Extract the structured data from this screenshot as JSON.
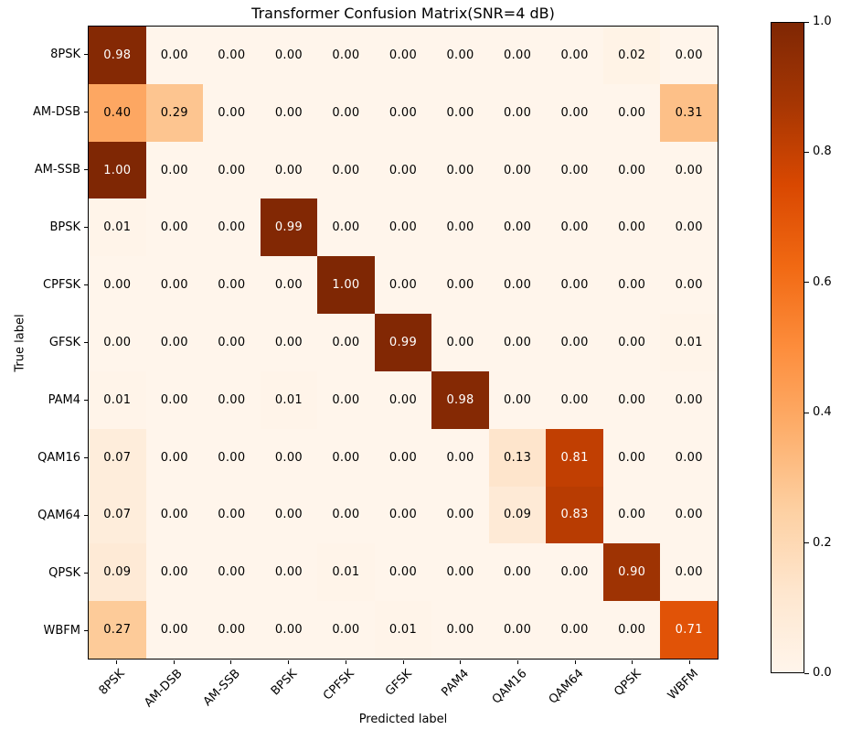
{
  "chart_data": {
    "type": "heatmap",
    "title": "Transformer Confusion Matrix(SNR=4 dB)",
    "xlabel": "Predicted label",
    "ylabel": "True label",
    "x_categories": [
      "8PSK",
      "AM-DSB",
      "AM-SSB",
      "BPSK",
      "CPFSK",
      "GFSK",
      "PAM4",
      "QAM16",
      "QAM64",
      "QPSK",
      "WBFM"
    ],
    "y_categories": [
      "8PSK",
      "AM-DSB",
      "AM-SSB",
      "BPSK",
      "CPFSK",
      "GFSK",
      "PAM4",
      "QAM16",
      "QAM64",
      "QPSK",
      "WBFM"
    ],
    "matrix": [
      [
        0.98,
        0.0,
        0.0,
        0.0,
        0.0,
        0.0,
        0.0,
        0.0,
        0.0,
        0.02,
        0.0
      ],
      [
        0.4,
        0.29,
        0.0,
        0.0,
        0.0,
        0.0,
        0.0,
        0.0,
        0.0,
        0.0,
        0.31
      ],
      [
        1.0,
        0.0,
        0.0,
        0.0,
        0.0,
        0.0,
        0.0,
        0.0,
        0.0,
        0.0,
        0.0
      ],
      [
        0.01,
        0.0,
        0.0,
        0.99,
        0.0,
        0.0,
        0.0,
        0.0,
        0.0,
        0.0,
        0.0
      ],
      [
        0.0,
        0.0,
        0.0,
        0.0,
        1.0,
        0.0,
        0.0,
        0.0,
        0.0,
        0.0,
        0.0
      ],
      [
        0.0,
        0.0,
        0.0,
        0.0,
        0.0,
        0.99,
        0.0,
        0.0,
        0.0,
        0.0,
        0.01
      ],
      [
        0.01,
        0.0,
        0.0,
        0.01,
        0.0,
        0.0,
        0.98,
        0.0,
        0.0,
        0.0,
        0.0
      ],
      [
        0.07,
        0.0,
        0.0,
        0.0,
        0.0,
        0.0,
        0.0,
        0.13,
        0.81,
        0.0,
        0.0
      ],
      [
        0.07,
        0.0,
        0.0,
        0.0,
        0.0,
        0.0,
        0.0,
        0.09,
        0.83,
        0.0,
        0.0
      ],
      [
        0.09,
        0.0,
        0.0,
        0.0,
        0.01,
        0.0,
        0.0,
        0.0,
        0.0,
        0.9,
        0.0
      ],
      [
        0.27,
        0.0,
        0.0,
        0.0,
        0.0,
        0.01,
        0.0,
        0.0,
        0.0,
        0.0,
        0.71
      ]
    ],
    "value_range": [
      0,
      1
    ],
    "colormap": "Oranges",
    "colormap_stops": [
      "#fff5eb",
      "#fee6ce",
      "#fdd0a2",
      "#fdae6b",
      "#fd8d3c",
      "#f16913",
      "#d94801",
      "#a63603",
      "#7f2704"
    ],
    "colorbar_ticks": [
      0.0,
      0.2,
      0.4,
      0.6,
      0.8,
      1.0
    ],
    "cell_text_dark": "#000000",
    "cell_text_light": "#ffffff",
    "white_text_threshold": 0.5,
    "grid": false,
    "legend_position": "right-colorbar"
  }
}
